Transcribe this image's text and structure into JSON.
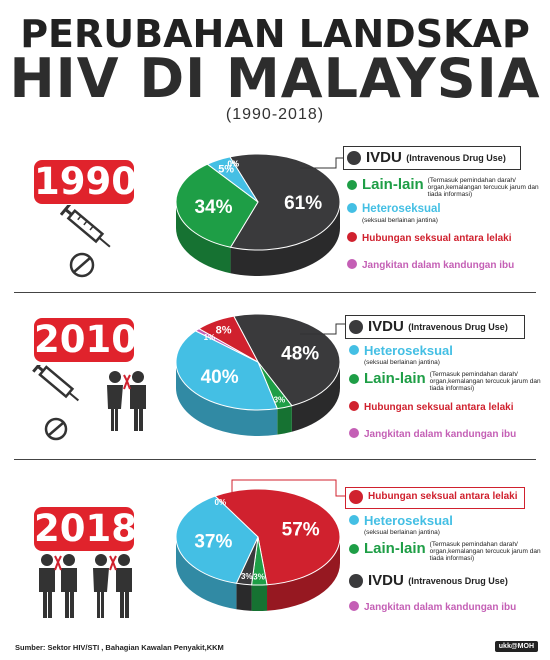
{
  "title": {
    "line1": "PERUBAHAN LANDSKAP",
    "line2": "HIV DI MALAYSIA",
    "period": "(1990-2018)"
  },
  "colors": {
    "ivdu": "#3a3a3c",
    "lain": "#1e9e46",
    "hetero": "#44bfe4",
    "homo": "#d0212e",
    "ibu": "#c45fb5",
    "badge": "#e0232c"
  },
  "labels": {
    "ivdu": "IVDU",
    "ivdu_full": "(Intravenous Drug Use)",
    "lain": "Lain-lain",
    "lain_note": "(Termasuk pemindahan darah/ organ,kemalangan tercucuk jarum dan tiada informasi)",
    "hetero": "Heteroseksual",
    "hetero_note": "(seksual berlainan jantina)",
    "homo": "Hubungan seksual antara lelaki",
    "ibu": "Jangkitan dalam kandungan ibu"
  },
  "chart_data": [
    {
      "type": "pie",
      "year": "1990",
      "slices": [
        {
          "key": "ivdu",
          "label": "IVDU",
          "value": 61,
          "text": "61%"
        },
        {
          "key": "lain",
          "label": "Lain-lain",
          "value": 34,
          "text": "34%"
        },
        {
          "key": "hetero",
          "label": "Heteroseksual",
          "value": 5,
          "text": "5%"
        },
        {
          "key": "homo",
          "label": "Hubungan seksual antara lelaki",
          "value": 0,
          "text": "0%"
        },
        {
          "key": "ibu",
          "label": "Jangkitan dalam kandungan ibu",
          "value": 0,
          "text": "0%"
        }
      ]
    },
    {
      "type": "pie",
      "year": "2010",
      "slices": [
        {
          "key": "ivdu",
          "label": "IVDU",
          "value": 48,
          "text": "48%"
        },
        {
          "key": "lain",
          "label": "Lain-lain",
          "value": 3,
          "text": "3%"
        },
        {
          "key": "hetero",
          "label": "Heteroseksual",
          "value": 40,
          "text": "40%"
        },
        {
          "key": "ibu",
          "label": "Jangkitan dalam kandungan ibu",
          "value": 1,
          "text": "1%"
        },
        {
          "key": "homo",
          "label": "Hubungan seksual antara lelaki",
          "value": 8,
          "text": "8%"
        }
      ]
    },
    {
      "type": "pie",
      "year": "2018",
      "slices": [
        {
          "key": "homo",
          "label": "Hubungan seksual antara lelaki",
          "value": 57,
          "text": "57%"
        },
        {
          "key": "lain",
          "label": "Lain-lain",
          "value": 3,
          "text": "3%"
        },
        {
          "key": "ivdu",
          "label": "IVDU",
          "value": 3,
          "text": "3%"
        },
        {
          "key": "hetero",
          "label": "Heteroseksual",
          "value": 37,
          "text": "37%"
        },
        {
          "key": "ibu",
          "label": "Jangkitan dalam kandungan ibu",
          "value": 0,
          "text": "0%"
        }
      ]
    }
  ],
  "footer": {
    "source": "Sumber: Sektor HIV/STI , Bahagian Kawalan Penyakit,KKM",
    "credit": "ukk@MOH"
  }
}
